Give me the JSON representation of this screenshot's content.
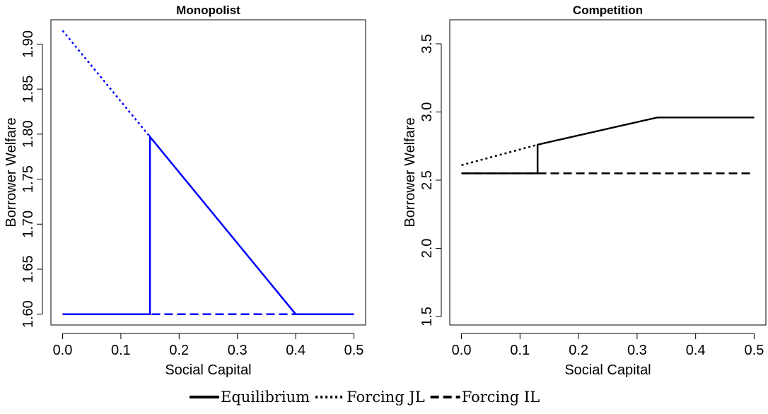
{
  "chart_data": [
    {
      "type": "line",
      "title": "Monopolist",
      "x_label": "Social Capital",
      "y_label": "Borrower Welfare",
      "xlim": [
        -0.02,
        0.52
      ],
      "ylim": [
        1.588,
        1.927
      ],
      "xticks": [
        {
          "value": 0,
          "label": "0.0"
        },
        0.1,
        0.2,
        0.3,
        0.4,
        0.5
      ],
      "yticks": [
        {
          "value": 1.6,
          "label": "1.60"
        },
        1.65,
        {
          "value": 1.7,
          "label": "1.70"
        },
        1.75,
        {
          "value": 1.8,
          "label": "1.80"
        },
        1.85,
        {
          "value": 1.9,
          "label": "1.90"
        }
      ],
      "series": [
        {
          "name": "Equilibrium",
          "color": "#0000ff",
          "style": "solid",
          "x": [
            0,
            0.15,
            0.15,
            0.4,
            0.5
          ],
          "values": [
            1.6,
            1.6,
            1.797,
            1.6,
            1.6
          ]
        },
        {
          "name": "Forcing JL",
          "color": "#0000ff",
          "style": "dotted",
          "x": [
            0,
            0.15
          ],
          "values": [
            1.915,
            1.797
          ]
        },
        {
          "name": "Forcing IL",
          "color": "#0000ff",
          "style": "dashed",
          "x": [
            0,
            0.5
          ],
          "values": [
            1.6,
            1.6
          ]
        }
      ]
    },
    {
      "type": "line",
      "title": "Competition",
      "x_label": "Social Capital",
      "y_label": "Borrower Welfare",
      "xlim": [
        -0.02,
        0.52
      ],
      "ylim": [
        1.438,
        3.676
      ],
      "xticks": [
        {
          "value": 0,
          "label": "0.0"
        },
        0.1,
        0.2,
        0.3,
        0.4,
        0.5
      ],
      "yticks": [
        1.5,
        {
          "value": 2,
          "label": "2.0"
        },
        2.5,
        {
          "value": 3,
          "label": "3.0"
        },
        3.5
      ],
      "series": [
        {
          "color": "#000000",
          "style": "solid",
          "x": [
            0,
            0.13,
            0.13,
            0.335,
            0.5
          ],
          "values": [
            2.55,
            2.55,
            2.76,
            2.96,
            2.96
          ]
        },
        {
          "color": "#000000",
          "style": "dotted",
          "x": [
            0,
            0.13
          ],
          "values": [
            2.61,
            2.76
          ]
        },
        {
          "color": "#000000",
          "style": "dashed",
          "x": [
            0,
            0.5
          ],
          "values": [
            2.55,
            2.55
          ]
        }
      ]
    }
  ]
}
